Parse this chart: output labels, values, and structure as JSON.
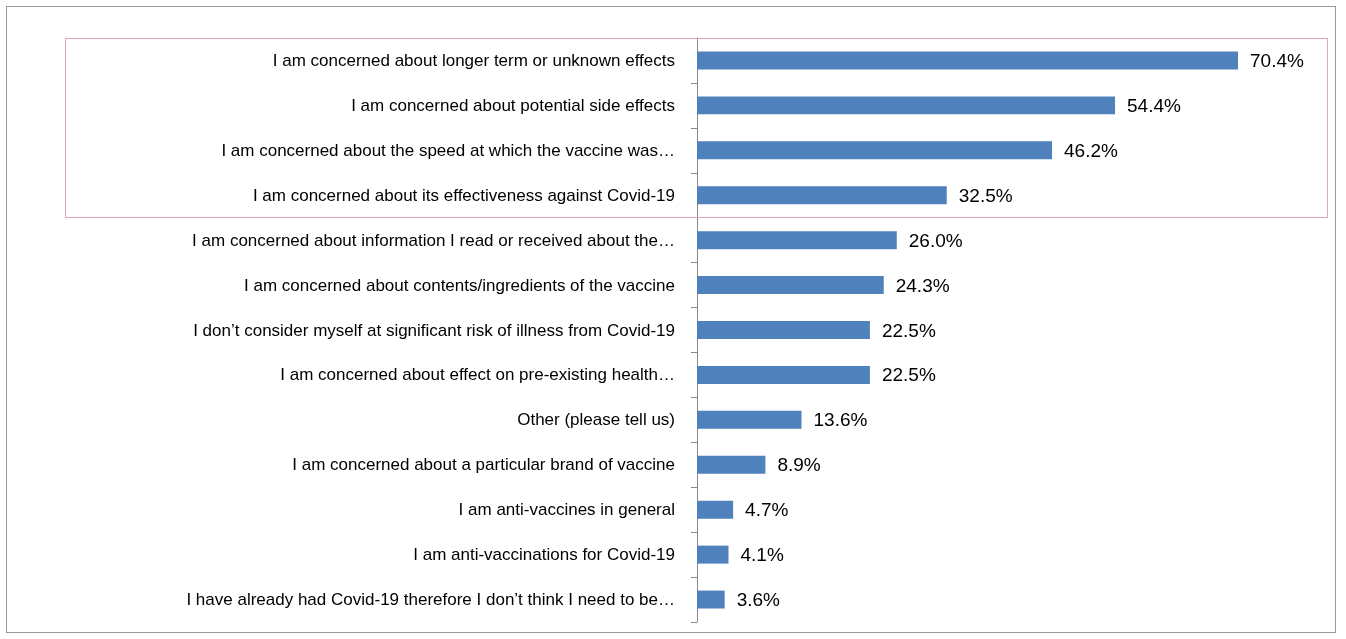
{
  "chart_data": {
    "type": "bar",
    "orientation": "horizontal",
    "categories": [
      "I am concerned about longer term or unknown effects",
      "I am concerned about potential side effects",
      "I am concerned about the speed at which the vaccine was…",
      "I am concerned about its effectiveness against Covid-19",
      "I am concerned about information I read or received about the…",
      "I am concerned about contents/ingredients of the vaccine",
      "I don’t consider myself at significant risk of illness from Covid-19",
      "I am concerned about effect on pre-existing health…",
      "Other (please tell us)",
      "I am concerned about a particular brand of vaccine",
      "I am anti-vaccines in general",
      "I am anti-vaccinations for Covid-19",
      "I have already had Covid-19 therefore I don’t think I need to be…"
    ],
    "values": [
      70.4,
      54.4,
      46.2,
      32.5,
      26.0,
      24.3,
      22.5,
      22.5,
      13.6,
      8.9,
      4.7,
      4.1,
      3.6
    ],
    "value_labels": [
      "70.4%",
      "54.4%",
      "46.2%",
      "32.5%",
      "26.0%",
      "24.3%",
      "22.5%",
      "22.5%",
      "13.6%",
      "8.9%",
      "4.7%",
      "4.1%",
      "3.6%"
    ],
    "color": "#4f81bd",
    "grid": false
  }
}
